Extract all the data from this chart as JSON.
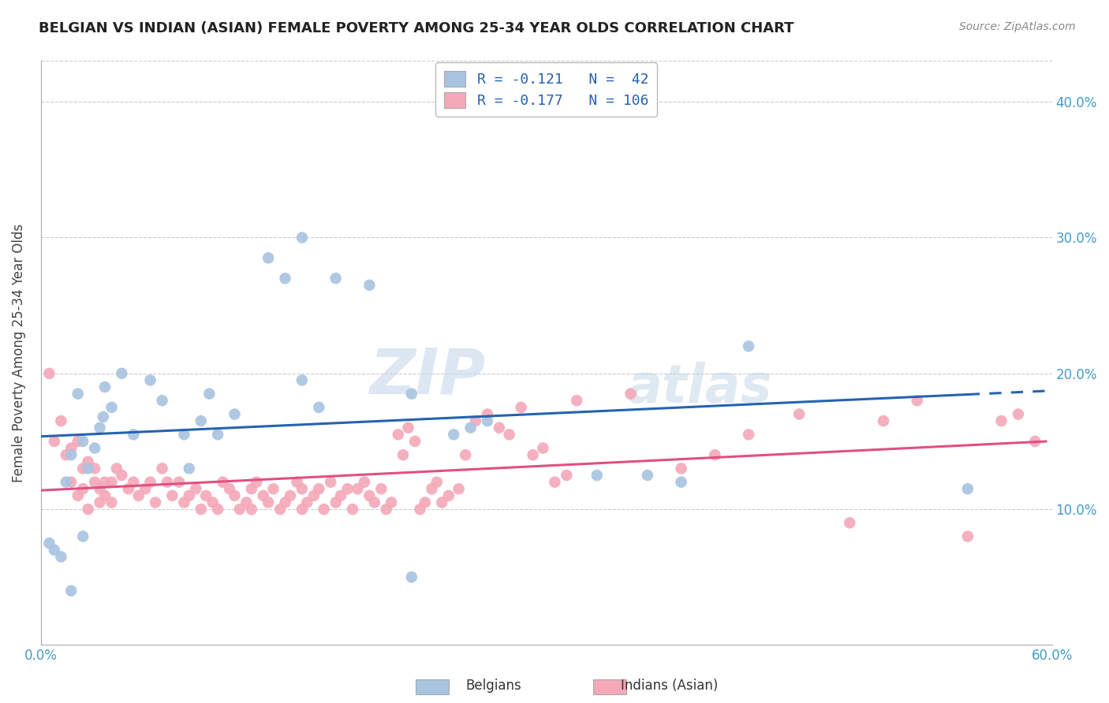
{
  "title": "BELGIAN VS INDIAN (ASIAN) FEMALE POVERTY AMONG 25-34 YEAR OLDS CORRELATION CHART",
  "source": "Source: ZipAtlas.com",
  "ylabel": "Female Poverty Among 25-34 Year Olds",
  "xlim": [
    0.0,
    0.6
  ],
  "ylim": [
    0.0,
    0.43
  ],
  "yticks": [
    0.1,
    0.2,
    0.3,
    0.4
  ],
  "ytick_labels": [
    "10.0%",
    "20.0%",
    "30.0%",
    "40.0%"
  ],
  "xtick_positions": [
    0.0,
    0.1,
    0.2,
    0.3,
    0.4,
    0.5,
    0.6
  ],
  "xtick_labels": [
    "0.0%",
    "",
    "",
    "",
    "",
    "",
    "60.0%"
  ],
  "belgian_color": "#a8c4e0",
  "indian_color": "#f4a8b8",
  "belgian_line_color": "#2563b0",
  "indian_line_color": "#e05080",
  "legend_r_belgian": "R = -0.121",
  "legend_n_belgian": "N =  42",
  "legend_r_indian": "R = -0.177",
  "legend_n_indian": "N = 106",
  "watermark_zip": "ZIP",
  "watermark_atlas": "atlas",
  "background_color": "#ffffff",
  "grid_color": "#cccccc",
  "belgian_scatter_x": [
    0.005,
    0.008,
    0.012,
    0.015,
    0.018,
    0.022,
    0.025,
    0.028,
    0.032,
    0.035,
    0.038,
    0.042,
    0.048,
    0.055,
    0.065,
    0.072,
    0.085,
    0.088,
    0.095,
    0.1,
    0.105,
    0.115,
    0.135,
    0.145,
    0.155,
    0.155,
    0.165,
    0.175,
    0.195,
    0.22,
    0.22,
    0.245,
    0.255,
    0.265,
    0.33,
    0.36,
    0.38,
    0.42,
    0.025,
    0.018,
    0.037,
    0.55
  ],
  "belgian_scatter_y": [
    0.075,
    0.07,
    0.065,
    0.12,
    0.14,
    0.185,
    0.15,
    0.13,
    0.145,
    0.16,
    0.19,
    0.175,
    0.2,
    0.155,
    0.195,
    0.18,
    0.155,
    0.13,
    0.165,
    0.185,
    0.155,
    0.17,
    0.285,
    0.27,
    0.195,
    0.3,
    0.175,
    0.27,
    0.265,
    0.185,
    0.05,
    0.155,
    0.16,
    0.165,
    0.125,
    0.125,
    0.12,
    0.22,
    0.08,
    0.04,
    0.168,
    0.115
  ],
  "indian_scatter_x": [
    0.005,
    0.008,
    0.012,
    0.015,
    0.018,
    0.018,
    0.022,
    0.022,
    0.025,
    0.025,
    0.028,
    0.028,
    0.032,
    0.032,
    0.035,
    0.035,
    0.038,
    0.038,
    0.042,
    0.042,
    0.045,
    0.048,
    0.052,
    0.055,
    0.058,
    0.062,
    0.065,
    0.068,
    0.072,
    0.075,
    0.078,
    0.082,
    0.085,
    0.088,
    0.092,
    0.095,
    0.098,
    0.102,
    0.105,
    0.108,
    0.112,
    0.115,
    0.118,
    0.122,
    0.125,
    0.125,
    0.128,
    0.132,
    0.135,
    0.138,
    0.142,
    0.145,
    0.148,
    0.152,
    0.155,
    0.155,
    0.158,
    0.162,
    0.165,
    0.168,
    0.172,
    0.175,
    0.178,
    0.182,
    0.185,
    0.188,
    0.192,
    0.195,
    0.198,
    0.202,
    0.205,
    0.208,
    0.212,
    0.215,
    0.218,
    0.222,
    0.225,
    0.228,
    0.232,
    0.235,
    0.238,
    0.242,
    0.248,
    0.252,
    0.258,
    0.265,
    0.272,
    0.278,
    0.285,
    0.292,
    0.298,
    0.305,
    0.312,
    0.318,
    0.35,
    0.38,
    0.4,
    0.42,
    0.45,
    0.48,
    0.5,
    0.52,
    0.55,
    0.57,
    0.58,
    0.59
  ],
  "indian_scatter_y": [
    0.2,
    0.15,
    0.165,
    0.14,
    0.145,
    0.12,
    0.15,
    0.11,
    0.13,
    0.115,
    0.135,
    0.1,
    0.13,
    0.12,
    0.115,
    0.105,
    0.11,
    0.12,
    0.12,
    0.105,
    0.13,
    0.125,
    0.115,
    0.12,
    0.11,
    0.115,
    0.12,
    0.105,
    0.13,
    0.12,
    0.11,
    0.12,
    0.105,
    0.11,
    0.115,
    0.1,
    0.11,
    0.105,
    0.1,
    0.12,
    0.115,
    0.11,
    0.1,
    0.105,
    0.1,
    0.115,
    0.12,
    0.11,
    0.105,
    0.115,
    0.1,
    0.105,
    0.11,
    0.12,
    0.115,
    0.1,
    0.105,
    0.11,
    0.115,
    0.1,
    0.12,
    0.105,
    0.11,
    0.115,
    0.1,
    0.115,
    0.12,
    0.11,
    0.105,
    0.115,
    0.1,
    0.105,
    0.155,
    0.14,
    0.16,
    0.15,
    0.1,
    0.105,
    0.115,
    0.12,
    0.105,
    0.11,
    0.115,
    0.14,
    0.165,
    0.17,
    0.16,
    0.155,
    0.175,
    0.14,
    0.145,
    0.12,
    0.125,
    0.18,
    0.185,
    0.13,
    0.14,
    0.155,
    0.17,
    0.09,
    0.165,
    0.18,
    0.08,
    0.165,
    0.17,
    0.15
  ]
}
